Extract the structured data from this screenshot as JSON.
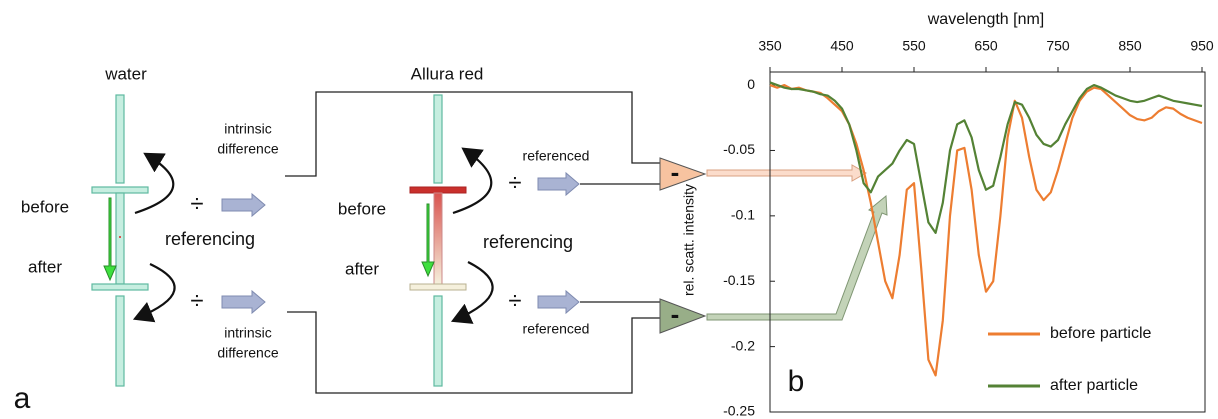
{
  "diagram": {
    "left_title": "water",
    "right_title": "Allura red",
    "left_before": "before",
    "left_after": "after",
    "right_before": "before",
    "right_after": "after",
    "left_referencing": "referencing",
    "right_referencing": "referencing",
    "divide": [
      "÷",
      "÷",
      "÷",
      "÷"
    ],
    "top_intrinsic": [
      "intrinsic",
      "difference"
    ],
    "bottom_intrinsic": [
      "intrinsic",
      "difference"
    ],
    "top_referenced": "referenced",
    "bottom_referenced": "referenced",
    "minus": [
      "-",
      "-"
    ],
    "panel_a": "a",
    "panel_b": "b"
  },
  "chart_data": {
    "type": "line",
    "xlabel": "wavelength [nm]",
    "ylabel": "rel. scatt. intensity",
    "x": [
      350,
      360,
      370,
      380,
      390,
      400,
      410,
      420,
      430,
      440,
      450,
      460,
      470,
      480,
      490,
      500,
      510,
      520,
      530,
      540,
      550,
      560,
      570,
      580,
      590,
      600,
      610,
      620,
      630,
      640,
      650,
      660,
      670,
      680,
      690,
      700,
      710,
      720,
      730,
      740,
      750,
      760,
      770,
      780,
      790,
      800,
      810,
      820,
      830,
      840,
      850,
      860,
      870,
      880,
      890,
      900,
      910,
      920,
      930,
      940,
      950
    ],
    "series": [
      {
        "name": "before particle",
        "color": "#ed7d31",
        "values": [
          0,
          -0.002,
          0,
          -0.003,
          -0.002,
          -0.004,
          -0.005,
          -0.006,
          -0.01,
          -0.015,
          -0.02,
          -0.03,
          -0.045,
          -0.065,
          -0.09,
          -0.12,
          -0.15,
          -0.163,
          -0.13,
          -0.08,
          -0.075,
          -0.14,
          -0.21,
          -0.222,
          -0.18,
          -0.1,
          -0.05,
          -0.048,
          -0.08,
          -0.13,
          -0.158,
          -0.15,
          -0.1,
          -0.04,
          -0.012,
          -0.025,
          -0.055,
          -0.08,
          -0.088,
          -0.082,
          -0.065,
          -0.045,
          -0.025,
          -0.012,
          -0.005,
          -0.002,
          -0.003,
          -0.008,
          -0.013,
          -0.018,
          -0.023,
          -0.026,
          -0.027,
          -0.025,
          -0.02,
          -0.017,
          -0.018,
          -0.022,
          -0.025,
          -0.027,
          -0.029
        ]
      },
      {
        "name": "after particle",
        "color": "#548235",
        "values": [
          0.002,
          0,
          -0.002,
          -0.003,
          -0.003,
          -0.004,
          -0.005,
          -0.007,
          -0.008,
          -0.012,
          -0.018,
          -0.03,
          -0.05,
          -0.075,
          -0.082,
          -0.07,
          -0.065,
          -0.06,
          -0.05,
          -0.042,
          -0.045,
          -0.075,
          -0.105,
          -0.113,
          -0.09,
          -0.05,
          -0.03,
          -0.027,
          -0.04,
          -0.065,
          -0.08,
          -0.077,
          -0.055,
          -0.03,
          -0.013,
          -0.015,
          -0.025,
          -0.038,
          -0.045,
          -0.047,
          -0.042,
          -0.03,
          -0.02,
          -0.01,
          -0.003,
          0,
          -0.002,
          -0.005,
          -0.008,
          -0.01,
          -0.012,
          -0.013,
          -0.012,
          -0.01,
          -0.008,
          -0.01,
          -0.012,
          -0.013,
          -0.014,
          -0.015,
          -0.016
        ]
      }
    ],
    "xlim": [
      350,
      950
    ],
    "xticks": [
      350,
      450,
      550,
      650,
      750,
      850,
      950
    ],
    "ylim": [
      -0.25,
      0.01
    ],
    "yticks": [
      0,
      -0.05,
      -0.1,
      -0.15,
      -0.2,
      -0.25
    ]
  }
}
